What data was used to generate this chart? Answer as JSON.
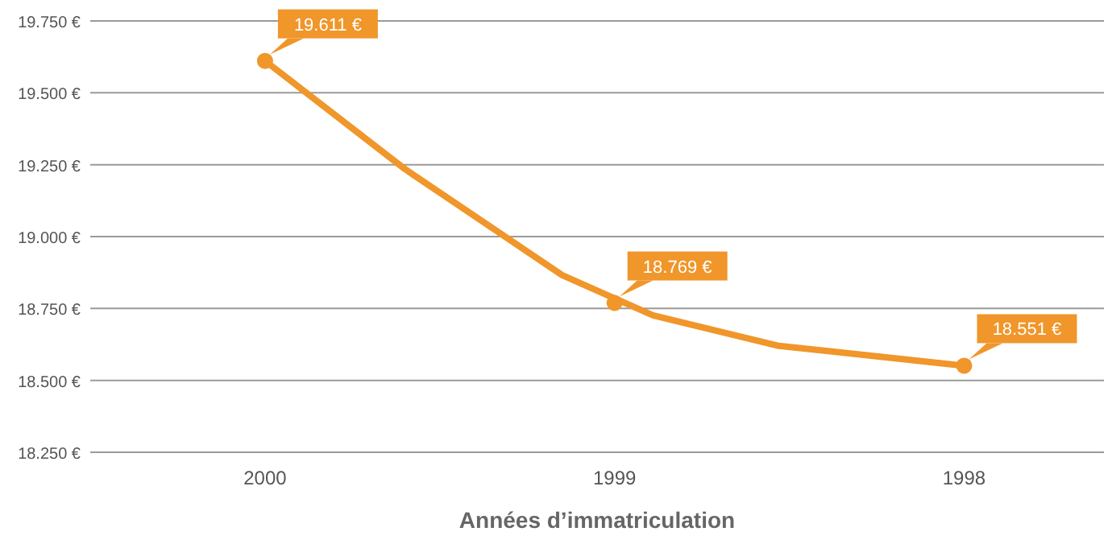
{
  "chart_data": {
    "type": "line",
    "xlabel": "Années d’immatriculation",
    "xlim": [
      2000.5,
      1997.6
    ],
    "xticks": [
      2000,
      1999,
      1998
    ],
    "ylim": [
      18250,
      19750
    ],
    "yticks": [
      {
        "value": 18250,
        "label": "18.250 €"
      },
      {
        "value": 18500,
        "label": "18.500 €"
      },
      {
        "value": 18750,
        "label": "18.750 €"
      },
      {
        "value": 19000,
        "label": "19.000 €"
      },
      {
        "value": 19250,
        "label": "19.250 €"
      },
      {
        "value": 19500,
        "label": "19.500 €"
      },
      {
        "value": 19750,
        "label": "19.750 €"
      }
    ],
    "grid": "y",
    "series": [
      {
        "color": "#f0962a",
        "marker": "none",
        "x": [
          2000,
          1999.6,
          1999.15,
          1998.89,
          1998.53,
          1998
        ],
        "values": [
          19611,
          19235,
          18866,
          18726,
          18620,
          18551
        ]
      },
      {
        "type": "scatter",
        "color": "#f0962a",
        "marker": "circle",
        "x": [
          2000,
          1999,
          1998
        ],
        "values": [
          19611,
          18769,
          18551
        ],
        "value_labels": [
          "19.611 €",
          "18.769 €",
          "18.551 €"
        ]
      }
    ]
  }
}
